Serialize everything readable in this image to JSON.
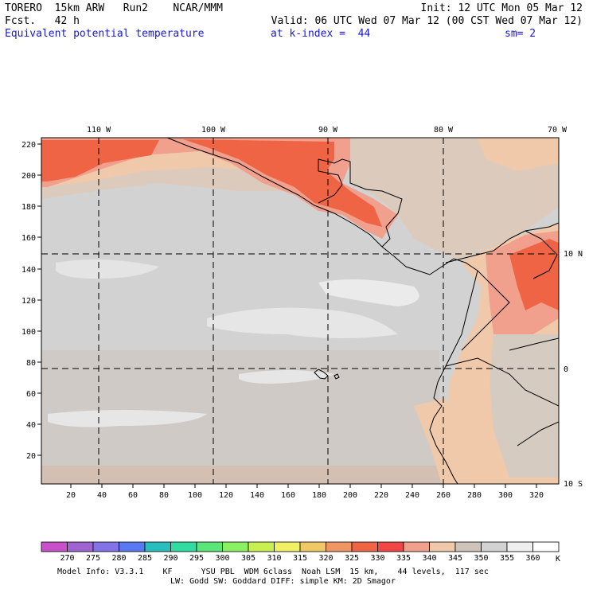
{
  "header": {
    "line1_left": "TORERO  15km ARW   Run2    NCAR/MMM",
    "line1_right": "Init: 12 UTC Mon 05 Mar 12",
    "line2_left": "Fcst.   42 h",
    "line2_right": "Valid: 06 UTC Wed 07 Mar 12 (00 CST Wed 07 Mar 12)",
    "field_name": "Equivalent potential temperature",
    "level": "at k-index =  44",
    "smoothing": "sm= 2"
  },
  "map": {
    "top_lon_labels": [
      "110 W",
      "100 W",
      "90 W",
      "80 W",
      "70 W"
    ],
    "right_lat_labels": [
      "10 N",
      "0",
      "10 S"
    ],
    "y_ticks": [
      "220",
      "200",
      "180",
      "160",
      "140",
      "120",
      "100",
      "80",
      "60",
      "40",
      "20"
    ],
    "x_ticks": [
      "20",
      "40",
      "60",
      "80",
      "100",
      "120",
      "140",
      "160",
      "180",
      "200",
      "220",
      "240",
      "260",
      "280",
      "300",
      "320"
    ]
  },
  "colorbar": {
    "labels": [
      "270",
      "275",
      "280",
      "285",
      "290",
      "295",
      "300",
      "305",
      "310",
      "315",
      "320",
      "325",
      "330",
      "335",
      "340",
      "345",
      "350",
      "355",
      "360"
    ],
    "unit": "K",
    "colors": [
      "#c850c8",
      "#a064d2",
      "#8273e6",
      "#5a78f0",
      "#28bebe",
      "#32dca0",
      "#5ae678",
      "#8cf064",
      "#c8f050",
      "#f0f064",
      "#f0c864",
      "#f09664",
      "#f06446",
      "#f04646",
      "#f0a08c",
      "#f0c8aa",
      "#cdc3b9",
      "#d2d2d2",
      "#f0f0f0",
      "#ffffff"
    ]
  },
  "footer": {
    "line1": "Model Info: V3.3.1    KF      YSU PBL  WDM 6class  Noah LSM  15 km,    44 levels,  117 sec",
    "line2": "LW: Godd SW: Goddard DIFF: simple KM: 2D Smagor"
  }
}
